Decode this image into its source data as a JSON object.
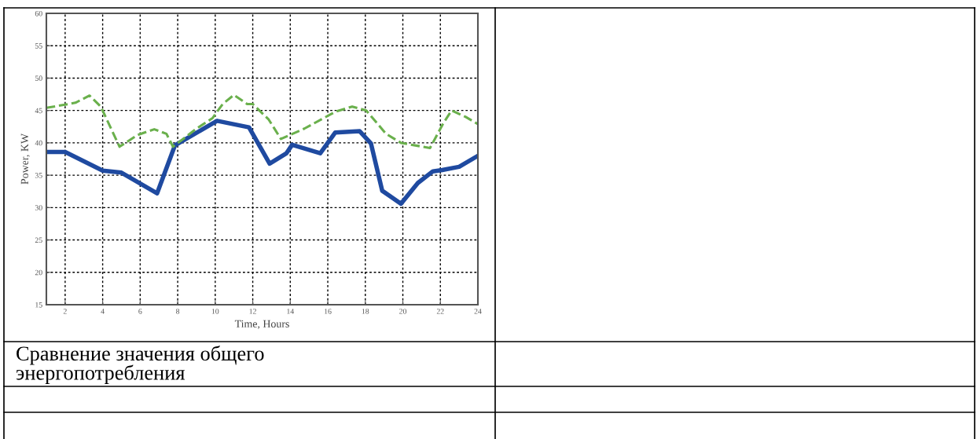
{
  "chart_data": {
    "type": "line",
    "xlabel": "Time, Hours",
    "ylabel": "Power, KW",
    "xlim": [
      1,
      24
    ],
    "xticks": [
      2,
      4,
      6,
      8,
      10,
      12,
      14,
      16,
      18,
      20,
      22,
      24
    ],
    "ylim": [
      15,
      60
    ],
    "yticks": [
      15,
      20,
      25,
      30,
      35,
      40,
      45,
      50,
      55,
      60
    ],
    "grid": true,
    "marker": "none",
    "annotations": [
      "Сравнение значения общего энергопотребления"
    ],
    "series": [
      {
        "color": "#1f4aa0",
        "line_style": "solid",
        "x": [
          1,
          2,
          4,
          5,
          6.9,
          7.85,
          10.1,
          11.8,
          12.9,
          13.8,
          14.1,
          15.6,
          16.4,
          17.7,
          18.3,
          18.9,
          19.9,
          20.8,
          21.6,
          22.1,
          23.0,
          24
        ],
        "values": [
          38.6,
          38.6,
          35.7,
          35.4,
          32.2,
          39.6,
          43.4,
          42.4,
          36.8,
          38.4,
          39.7,
          38.4,
          41.6,
          41.8,
          39.9,
          32.6,
          30.6,
          33.8,
          35.6,
          35.8,
          36.3,
          38.0
        ]
      },
      {
        "color": "#6ab04c",
        "line_style": "dashed",
        "x": [
          1,
          2,
          2.55,
          3.3,
          3.9,
          4.9,
          5.85,
          6.75,
          7.4,
          7.75,
          9.0,
          9.85,
          10.4,
          11.0,
          11.7,
          12.0,
          12.85,
          13.5,
          14.75,
          16.4,
          17.3,
          18.05,
          19.1,
          19.9,
          21.45,
          22.15,
          22.6,
          23.35,
          24
        ],
        "values": [
          45.4,
          45.9,
          46.2,
          47.3,
          45.6,
          39.4,
          41.2,
          42.1,
          41.4,
          39.4,
          42.2,
          43.8,
          46.0,
          47.4,
          46.0,
          46.0,
          43.6,
          40.6,
          42.2,
          44.8,
          45.6,
          45.0,
          41.4,
          40.0,
          39.2,
          43.0,
          45.0,
          44.0,
          42.9
        ]
      }
    ]
  }
}
